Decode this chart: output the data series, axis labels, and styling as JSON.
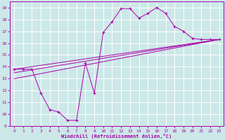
{
  "xlabel": "Windchill (Refroidissement éolien,°C)",
  "bg_color": "#cce8e8",
  "grid_color": "#ffffff",
  "line_color": "#aa00aa",
  "x_ticks": [
    0,
    1,
    2,
    3,
    4,
    5,
    6,
    7,
    8,
    9,
    10,
    11,
    12,
    13,
    14,
    15,
    16,
    17,
    18,
    19,
    20,
    21,
    22,
    23
  ],
  "y_ticks": [
    9,
    10,
    11,
    12,
    13,
    14,
    15,
    16,
    17,
    18,
    19
  ],
  "ylim": [
    9.0,
    19.5
  ],
  "xlim": [
    -0.5,
    23.5
  ],
  "line1_x": [
    0,
    1,
    2,
    3,
    4,
    5,
    6,
    7,
    8,
    9,
    10,
    11,
    12,
    13,
    14,
    15,
    16,
    17,
    18,
    19,
    20,
    21,
    22,
    23
  ],
  "line1_y": [
    13.8,
    13.8,
    13.8,
    11.8,
    10.4,
    10.2,
    9.5,
    9.5,
    14.3,
    11.8,
    16.9,
    17.8,
    18.9,
    18.9,
    18.1,
    18.5,
    19.0,
    18.5,
    17.4,
    17.0,
    16.4,
    16.3,
    16.3,
    16.3
  ],
  "line2_x": [
    0,
    23
  ],
  "line2_y": [
    13.8,
    16.3
  ],
  "line3_x": [
    0,
    23
  ],
  "line3_y": [
    13.5,
    16.3
  ],
  "line4_x": [
    0,
    23
  ],
  "line4_y": [
    13.0,
    16.3
  ]
}
